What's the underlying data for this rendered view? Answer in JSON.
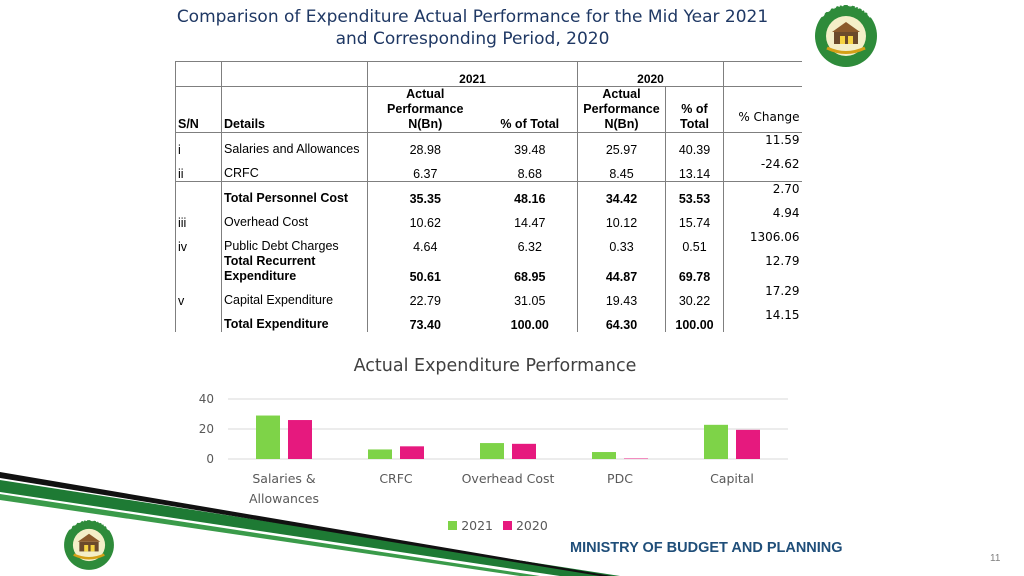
{
  "title": {
    "line1": "Comparison of Expenditure Actual Performance for the Mid Year 2021",
    "line2": "and Corresponding Period, 2020"
  },
  "logo": {
    "top_text": "OGUN STATE",
    "bottom_text": "NIGERIA"
  },
  "colors": {
    "title": "#1f3864",
    "series_2021": "#7ed348",
    "series_2020": "#e6197e",
    "footer": "#1f4e79",
    "stripe_green": "#1e7a34"
  },
  "table": {
    "year_2021": "2021",
    "year_2020": "2020",
    "headers": {
      "sn": "S/N",
      "details": "Details",
      "actual_2021": "Actual Performance N(Bn)",
      "pct_2021": "% of Total",
      "actual_2020": "Actual Performance N(Bn)",
      "pct_2020": "% of Total",
      "change": "% Change"
    },
    "rows": [
      {
        "sn": "i",
        "details": "Salaries and Allowances",
        "a21": "28.98",
        "p21": "39.48",
        "a20": "25.97",
        "p20": "40.39",
        "chg": "11.59"
      },
      {
        "sn": "ii",
        "details": "CRFC",
        "a21": "6.37",
        "p21": "8.68",
        "a20": "8.45",
        "p20": "13.14",
        "chg": "-24.62"
      },
      {
        "sn": "",
        "details": "Total Personnel Cost",
        "a21": "35.35",
        "p21": "48.16",
        "a20": "34.42",
        "p20": "53.53",
        "chg": "2.70"
      },
      {
        "sn": "iii",
        "details": "Overhead Cost",
        "a21": "10.62",
        "p21": "14.47",
        "a20": "10.12",
        "p20": "15.74",
        "chg": "4.94"
      },
      {
        "sn": "iv",
        "details": "Public Debt Charges",
        "a21": "4.64",
        "p21": "6.32",
        "a20": "0.33",
        "p20": "0.51",
        "chg": "1306.06"
      },
      {
        "sn": "",
        "details": "Total Recurrent Expenditure",
        "a21": "50.61",
        "p21": "68.95",
        "a20": "44.87",
        "p20": "69.78",
        "chg": "12.79"
      },
      {
        "sn": "v",
        "details": "Capital Expenditure",
        "a21": "22.79",
        "p21": "31.05",
        "a20": "19.43",
        "p20": "30.22",
        "chg": "17.29"
      },
      {
        "sn": "",
        "details": "Total Expenditure",
        "a21": "73.40",
        "p21": "100.00",
        "a20": "64.30",
        "p20": "100.00",
        "chg": "14.15"
      }
    ]
  },
  "chart_data": {
    "type": "bar",
    "title": "Actual Expenditure Performance",
    "categories": [
      "Salaries & Allowances",
      "CRFC",
      "Overhead Cost",
      "PDC",
      "Capital"
    ],
    "series": [
      {
        "name": "2021",
        "values": [
          28.98,
          6.37,
          10.62,
          4.64,
          22.79
        ]
      },
      {
        "name": "2020",
        "values": [
          25.97,
          8.45,
          10.12,
          0.33,
          19.43
        ]
      }
    ],
    "ylim": [
      0,
      40
    ],
    "yticks": [
      "0",
      "20",
      "40"
    ],
    "grid": true,
    "legend": "bottom"
  },
  "footer": {
    "ministry": "MINISTRY OF BUDGET AND PLANNING",
    "page": "11"
  }
}
